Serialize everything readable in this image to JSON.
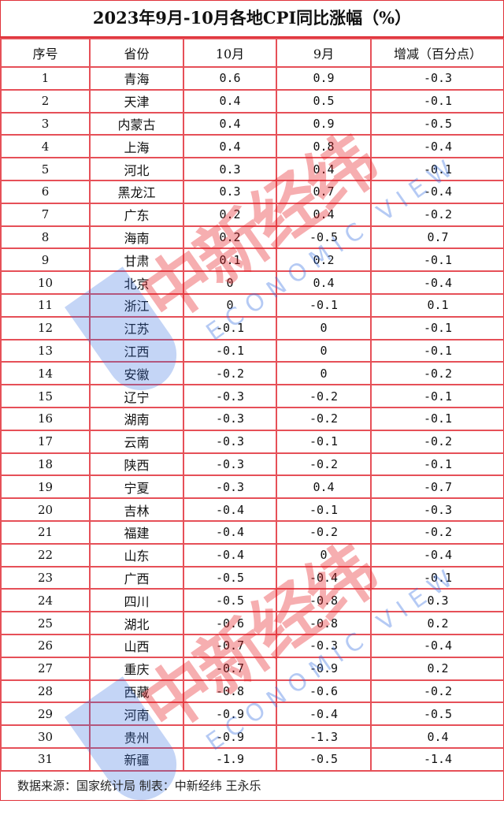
{
  "title": "2023年9月-10月各地CPI同比涨幅（%）",
  "columns": [
    "序号",
    "省份",
    "10月",
    "9月",
    "增减（百分点）"
  ],
  "rows": [
    [
      "1",
      "青海",
      "0.6",
      "0.9",
      "-0.3"
    ],
    [
      "2",
      "天津",
      "0.4",
      "0.5",
      "-0.1"
    ],
    [
      "3",
      "内蒙古",
      "0.4",
      "0.9",
      "-0.5"
    ],
    [
      "4",
      "上海",
      "0.4",
      "0.8",
      "-0.4"
    ],
    [
      "5",
      "河北",
      "0.3",
      "0.4",
      "-0.1"
    ],
    [
      "6",
      "黑龙江",
      "0.3",
      "0.7",
      "-0.4"
    ],
    [
      "7",
      "广东",
      "0.2",
      "0.4",
      "-0.2"
    ],
    [
      "8",
      "海南",
      "0.2",
      "-0.5",
      "0.7"
    ],
    [
      "9",
      "甘肃",
      "0.1",
      "0.2",
      "-0.1"
    ],
    [
      "10",
      "北京",
      "0",
      "0.4",
      "-0.4"
    ],
    [
      "11",
      "浙江",
      "0",
      "-0.1",
      "0.1"
    ],
    [
      "12",
      "江苏",
      "-0.1",
      "0",
      "-0.1"
    ],
    [
      "13",
      "江西",
      "-0.1",
      "0",
      "-0.1"
    ],
    [
      "14",
      "安徽",
      "-0.2",
      "0",
      "-0.2"
    ],
    [
      "15",
      "辽宁",
      "-0.3",
      "-0.2",
      "-0.1"
    ],
    [
      "16",
      "湖南",
      "-0.3",
      "-0.2",
      "-0.1"
    ],
    [
      "17",
      "云南",
      "-0.3",
      "-0.1",
      "-0.2"
    ],
    [
      "18",
      "陕西",
      "-0.3",
      "-0.2",
      "-0.1"
    ],
    [
      "19",
      "宁夏",
      "-0.3",
      "0.4",
      "-0.7"
    ],
    [
      "20",
      "吉林",
      "-0.4",
      "-0.1",
      "-0.3"
    ],
    [
      "21",
      "福建",
      "-0.4",
      "-0.2",
      "-0.2"
    ],
    [
      "22",
      "山东",
      "-0.4",
      "0",
      "-0.4"
    ],
    [
      "23",
      "广西",
      "-0.5",
      "-0.4",
      "-0.1"
    ],
    [
      "24",
      "四川",
      "-0.5",
      "-0.8",
      "0.3"
    ],
    [
      "25",
      "湖北",
      "-0.6",
      "-0.8",
      "0.2"
    ],
    [
      "26",
      "山西",
      "-0.7",
      "-0.3",
      "-0.4"
    ],
    [
      "27",
      "重庆",
      "-0.7",
      "-0.9",
      "0.2"
    ],
    [
      "28",
      "西藏",
      "-0.8",
      "-0.6",
      "-0.2"
    ],
    [
      "29",
      "河南",
      "-0.9",
      "-0.4",
      "-0.5"
    ],
    [
      "30",
      "贵州",
      "-0.9",
      "-1.3",
      "0.4"
    ],
    [
      "31",
      "新疆",
      "-1.9",
      "-0.5",
      "-1.4"
    ]
  ],
  "footer": "数据来源：国家统计局  制表：中新经纬  王永乐",
  "watermark": {
    "cn": "中新经纬",
    "en": "ECONOMIC VIEW"
  },
  "colors": {
    "border": "#e0323a",
    "watermark_red": "#e8191f",
    "watermark_blue": "#2f6ae0"
  }
}
